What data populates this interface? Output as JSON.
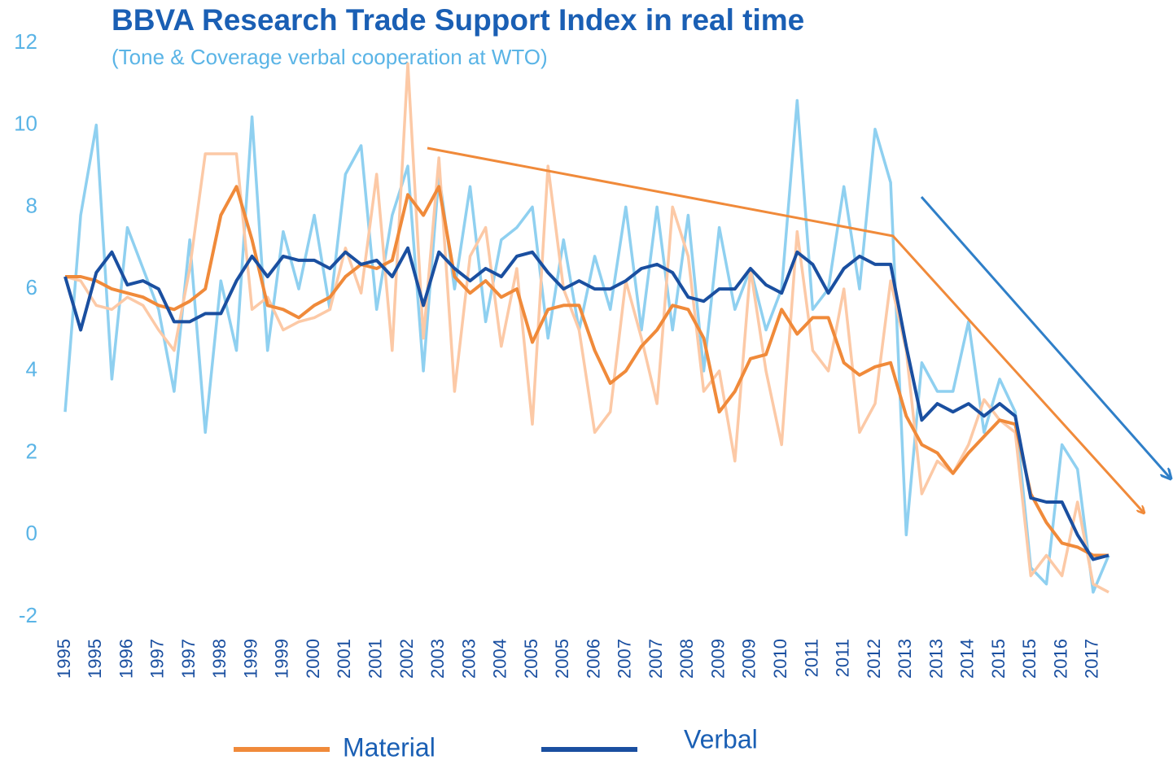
{
  "chart_data": {
    "type": "line",
    "title": "BBVA Research Trade Support Index in real time",
    "subtitle": "(Tone & Coverage verbal cooperation at WTO)",
    "categories": [
      "1995",
      null,
      "1995",
      null,
      "1996",
      null,
      "1997",
      null,
      "1997",
      null,
      "1998",
      null,
      "1999",
      null,
      "1999",
      null,
      "2000",
      null,
      "2001",
      null,
      "2001",
      null,
      "2002",
      null,
      "2003",
      null,
      "2003",
      null,
      "2004",
      null,
      "2005",
      null,
      "2005",
      null,
      "2006",
      null,
      "2007",
      null,
      "2007",
      null,
      "2008",
      null,
      "2009",
      null,
      "2009",
      null,
      "2010",
      null,
      "2011",
      null,
      "2011",
      null,
      "2012",
      null,
      "2013",
      null,
      "2013",
      null,
      "2014",
      null,
      "2015",
      null,
      "2015",
      null,
      "2016",
      null,
      "2017",
      null
    ],
    "ylim": [
      -2,
      12
    ],
    "yticks": [
      -2,
      0,
      2,
      4,
      6,
      8,
      10,
      12
    ],
    "legend": "bottom",
    "series": [
      {
        "color": "#8fd0f0",
        "values": [
          3.0,
          7.8,
          10.0,
          3.8,
          7.5,
          6.5,
          5.5,
          3.5,
          7.2,
          2.5,
          6.2,
          4.5,
          10.2,
          4.5,
          7.4,
          6.0,
          7.8,
          5.5,
          8.8,
          9.5,
          5.5,
          7.8,
          9.0,
          4.0,
          8.8,
          6.0,
          8.5,
          5.2,
          7.2,
          7.5,
          8.0,
          4.8,
          7.2,
          5.0,
          6.8,
          5.5,
          8.0,
          5.0,
          8.0,
          5.0,
          7.8,
          4.0,
          7.5,
          5.5,
          6.5,
          5.0,
          6.0,
          10.6,
          5.5,
          6.0,
          8.5,
          6.0,
          9.9,
          8.6,
          0.0,
          4.2,
          3.5,
          3.5,
          5.2,
          2.5,
          3.8,
          3.0,
          -0.8,
          -1.2,
          2.2,
          1.6,
          -1.4,
          -0.5
        ]
      },
      {
        "color": "#fcc9a6",
        "values": [
          6.3,
          6.2,
          5.6,
          5.5,
          5.8,
          5.6,
          5.0,
          4.5,
          6.5,
          9.3,
          9.3,
          9.3,
          5.5,
          5.8,
          5.0,
          5.2,
          5.3,
          5.5,
          7.0,
          5.9,
          8.8,
          4.5,
          11.5,
          4.8,
          9.2,
          3.5,
          6.8,
          7.5,
          4.6,
          6.5,
          2.7,
          9.0,
          6.0,
          5.0,
          2.5,
          3.0,
          6.2,
          4.8,
          3.2,
          8.0,
          6.8,
          3.5,
          4.0,
          1.8,
          6.5,
          4.0,
          2.2,
          7.4,
          4.5,
          4.0,
          6.0,
          2.5,
          3.2,
          6.2,
          4.5,
          1.0,
          1.8,
          1.5,
          2.2,
          3.3,
          2.8,
          2.5,
          -1.0,
          -0.5,
          -1.0,
          0.8,
          -1.2,
          -1.4
        ]
      },
      {
        "name": "Material",
        "color": "#f08a3a",
        "values": [
          6.3,
          6.3,
          6.2,
          6.0,
          5.9,
          5.8,
          5.6,
          5.5,
          5.7,
          6.0,
          7.8,
          8.5,
          7.2,
          5.6,
          5.5,
          5.3,
          5.6,
          5.8,
          6.3,
          6.6,
          6.5,
          6.7,
          8.3,
          7.8,
          8.5,
          6.3,
          5.9,
          6.2,
          5.8,
          6.0,
          4.7,
          5.5,
          5.6,
          5.6,
          4.5,
          3.7,
          4.0,
          4.6,
          5.0,
          5.6,
          5.5,
          4.8,
          3.0,
          3.5,
          4.3,
          4.4,
          5.5,
          4.9,
          5.3,
          5.3,
          4.2,
          3.9,
          4.1,
          4.2,
          2.9,
          2.2,
          2.0,
          1.5,
          2.0,
          2.4,
          2.8,
          2.7,
          1.0,
          0.3,
          -0.2,
          -0.3,
          -0.5,
          -0.5
        ]
      },
      {
        "name": "Verbal",
        "color": "#1a4fa0",
        "values": [
          6.3,
          5.0,
          6.4,
          6.9,
          6.1,
          6.2,
          6.0,
          5.2,
          5.2,
          5.4,
          5.4,
          6.2,
          6.8,
          6.3,
          6.8,
          6.7,
          6.7,
          6.5,
          6.9,
          6.6,
          6.7,
          6.3,
          7.0,
          5.6,
          6.9,
          6.5,
          6.2,
          6.5,
          6.3,
          6.8,
          6.9,
          6.4,
          6.0,
          6.2,
          6.0,
          6.0,
          6.2,
          6.5,
          6.6,
          6.4,
          5.8,
          5.7,
          6.0,
          6.0,
          6.5,
          6.1,
          5.9,
          6.9,
          6.6,
          5.9,
          6.5,
          6.8,
          6.6,
          6.6,
          4.6,
          2.8,
          3.2,
          3.0,
          3.2,
          2.9,
          3.2,
          2.9,
          0.9,
          0.8,
          0.8,
          0.0,
          -0.6,
          -0.5
        ]
      }
    ]
  }
}
